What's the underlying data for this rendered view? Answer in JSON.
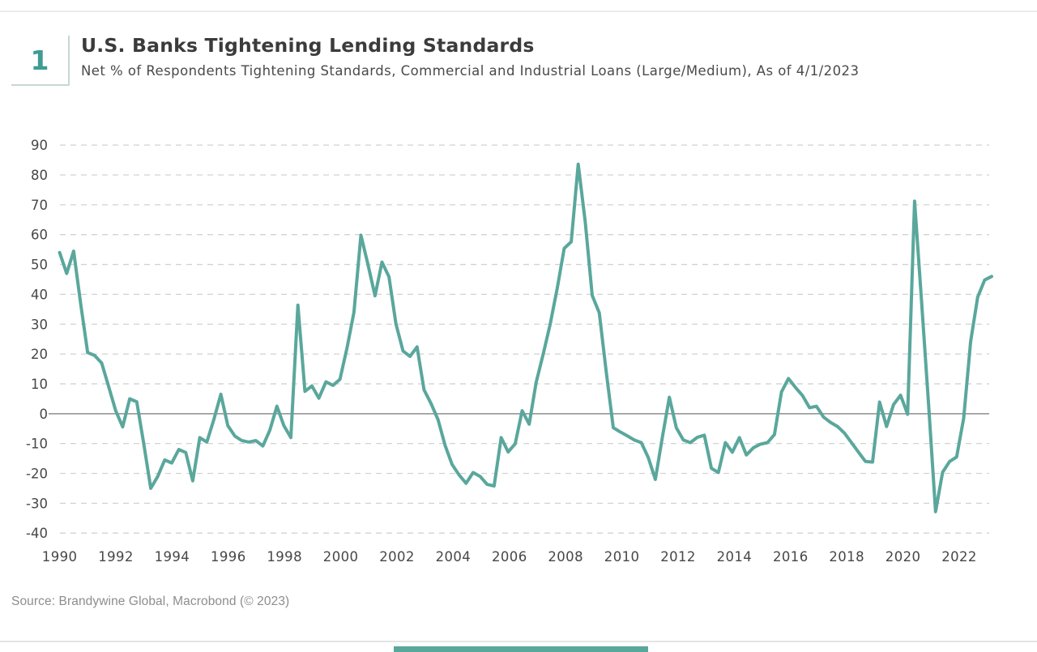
{
  "header": {
    "badge": "1",
    "title": "U.S. Banks Tightening Lending Standards",
    "subtitle": "Net % of Respondents Tightening Standards, Commercial and Industrial Loans (Large/Medium), As of 4/1/2023"
  },
  "source": "Source: Brandywine Global, Macrobond (© 2023)",
  "colors": {
    "line": "#5AA79C",
    "badge_text": "#3F9C93",
    "badge_border": "#C7D7D1",
    "grid": "#D2D2D2",
    "zero_line": "#979797",
    "axis_text": "#474747",
    "title_text": "#3B3B3B",
    "source_text": "#8D8D8D",
    "accent_bar": "#5AA79C"
  },
  "chart_data": {
    "type": "line",
    "title": "U.S. Banks Tightening Lending Standards",
    "series_name": "Net % of Respondents Tightening Standards, Commercial and Industrial Loans (Large/Medium)",
    "frequency": "quarterly",
    "x_start": 1990.0,
    "x_step_years": 0.25,
    "as_of": "4/1/2023",
    "xlabel": "",
    "ylabel": "Net % of respondents tightening",
    "ylim": [
      -40,
      90
    ],
    "grid": "dashed horizontal gridlines, solid zero line",
    "legend": "none",
    "y_ticks": [
      90,
      80,
      70,
      60,
      50,
      40,
      30,
      20,
      10,
      0,
      -10,
      -20,
      -30,
      -40
    ],
    "x_ticks": [
      1990,
      1992,
      1994,
      1996,
      1998,
      2000,
      2002,
      2004,
      2006,
      2008,
      2010,
      2012,
      2014,
      2016,
      2018,
      2020,
      2022
    ],
    "values": [
      54,
      47,
      54.5,
      37,
      20.5,
      19.5,
      17,
      9,
      1,
      -4.4,
      5,
      4,
      -10,
      -25,
      -21,
      -15.5,
      -16.5,
      -12,
      -13,
      -22.5,
      -8,
      -9.5,
      -2,
      6.5,
      -4,
      -7.5,
      -9,
      -9.5,
      -9,
      -10.8,
      -5.5,
      2.5,
      -4,
      -8,
      36.4,
      7.5,
      9.3,
      5.2,
      10.7,
      9.5,
      11.5,
      22,
      34,
      59.8,
      50,
      39.5,
      50.8,
      45.9,
      30,
      21,
      19.2,
      22.4,
      8,
      3.4,
      -2,
      -10.6,
      -17,
      -20.5,
      -23.3,
      -19.7,
      -21,
      -23.7,
      -24.2,
      -8,
      -12.8,
      -10.1,
      1.0,
      -3.5,
      10.5,
      20,
      30,
      42,
      55.4,
      57.6,
      83.6,
      64.2,
      39.6,
      33.8,
      14,
      -4.7,
      -6.1,
      -7.4,
      -8.8,
      -9.7,
      -14.7,
      -22,
      -8,
      5.5,
      -4.7,
      -8.8,
      -9.7,
      -7.9,
      -7.2,
      -18.3,
      -19.7,
      -9.7,
      -12.9,
      -8.0,
      -13.8,
      -11.4,
      -10.2,
      -9.7,
      -7.0,
      7.3,
      11.8,
      8.8,
      6.1,
      2.0,
      2.5,
      -1.1,
      -2.9,
      -4.3,
      -6.5,
      -9.7,
      -12.9,
      -16.0,
      -16.2,
      3.9,
      -4.3,
      3.1,
      6.2,
      -0.2,
      71.2,
      37.7,
      3,
      -32.8,
      -19.6,
      -16.0,
      -14.5,
      -1.5,
      24.2,
      39.1,
      44.8,
      46.0
    ]
  }
}
